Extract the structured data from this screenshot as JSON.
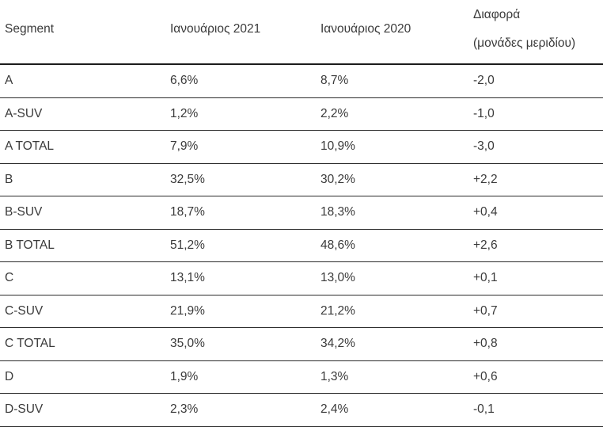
{
  "colors": {
    "background": "#ffffff",
    "text": "#3a3a3a",
    "header_rule": "#1c1c1c",
    "row_rule": "#2b2b2b"
  },
  "chart_data": {
    "type": "table",
    "columns": [
      "Segment",
      "Ιανουάριος 2021",
      "Ιανουάριος 2020",
      "Διαφορά (μονάδες μεριδίου)"
    ],
    "column4_lines": [
      "Διαφορά",
      "(μονάδες μεριδίου)"
    ],
    "rows": [
      [
        "A",
        "6,6%",
        "8,7%",
        "-2,0"
      ],
      [
        "A-SUV",
        "1,2%",
        "2,2%",
        "-1,0"
      ],
      [
        "A TOTAL",
        "7,9%",
        "10,9%",
        "-3,0"
      ],
      [
        "B",
        "32,5%",
        "30,2%",
        "+2,2"
      ],
      [
        "B-SUV",
        "18,7%",
        "18,3%",
        "+0,4"
      ],
      [
        "B TOTAL",
        "51,2%",
        "48,6%",
        "+2,6"
      ],
      [
        "C",
        "13,1%",
        "13,0%",
        "+0,1"
      ],
      [
        "C-SUV",
        "21,9%",
        "21,2%",
        "+0,7"
      ],
      [
        "C TOTAL",
        "35,0%",
        "34,2%",
        "+0,8"
      ],
      [
        "D",
        "1,9%",
        "1,3%",
        "+0,6"
      ],
      [
        "D-SUV",
        "2,3%",
        "2,4%",
        "-0,1"
      ]
    ],
    "notes": {
      "value_format": "percent share with comma decimal separator",
      "diff_unit": "share points (μονάδες μεριδίου)",
      "grid": "horizontal rules only",
      "legend": "none",
      "title": "none visible"
    }
  }
}
